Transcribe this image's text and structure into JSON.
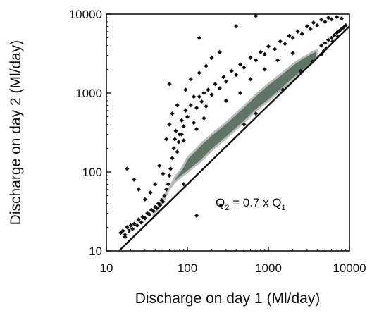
{
  "chart_data": {
    "type": "scatter",
    "title": "",
    "xlabel": "Discharge on day 1 (Ml/day)",
    "ylabel": "Discharge on day 2 (Ml/day)",
    "xscale": "log",
    "yscale": "log",
    "xlim": [
      10,
      10000
    ],
    "ylim": [
      10,
      10000
    ],
    "x_ticks": [
      10,
      100,
      1000,
      10000
    ],
    "y_ticks": [
      10,
      100,
      1000,
      10000
    ],
    "x_tick_labels": [
      "10",
      "100",
      "1000",
      "10000"
    ],
    "y_tick_labels": [
      "10",
      "100",
      "1000",
      "10000"
    ],
    "grid": false,
    "colors": {
      "points": "#111111",
      "dense_band": "#5f7565",
      "band_edge": "#b9bcb8",
      "line": "#111111",
      "axes": "#111111"
    },
    "reference_line": {
      "slope": 0.7,
      "x_range": [
        14.5,
        10000
      ]
    },
    "annotation": {
      "q2": "Q",
      "q2_sub": "2",
      "mid": " = 0.7 x Q",
      "q1_sub": "1"
    },
    "dense_band_upper": [
      [
        38,
        28
      ],
      [
        50,
        42
      ],
      [
        60,
        62
      ],
      [
        70,
        85
      ],
      [
        85,
        110
      ],
      [
        100,
        150
      ],
      [
        150,
        230
      ],
      [
        200,
        300
      ],
      [
        250,
        360
      ],
      [
        300,
        420
      ],
      [
        400,
        550
      ],
      [
        500,
        680
      ],
      [
        700,
        950
      ],
      [
        1000,
        1300
      ],
      [
        1500,
        1800
      ],
      [
        2000,
        2300
      ],
      [
        2500,
        2700
      ],
      [
        3000,
        3000
      ],
      [
        3500,
        3300
      ],
      [
        4000,
        3500
      ]
    ],
    "dense_band_lower": [
      [
        4000,
        2800
      ],
      [
        3000,
        2100
      ],
      [
        2000,
        1500
      ],
      [
        1500,
        1150
      ],
      [
        1000,
        800
      ],
      [
        700,
        600
      ],
      [
        500,
        430
      ],
      [
        300,
        270
      ],
      [
        200,
        190
      ],
      [
        150,
        140
      ],
      [
        100,
        100
      ],
      [
        70,
        75
      ],
      [
        55,
        55
      ],
      [
        45,
        38
      ],
      [
        38,
        28
      ]
    ],
    "points": [
      [
        15,
        17
      ],
      [
        16,
        18
      ],
      [
        17,
        16
      ],
      [
        18,
        20
      ],
      [
        19,
        18
      ],
      [
        20,
        21
      ],
      [
        21,
        19
      ],
      [
        22,
        22
      ],
      [
        24,
        21
      ],
      [
        25,
        25
      ],
      [
        27,
        23
      ],
      [
        28,
        27
      ],
      [
        30,
        26
      ],
      [
        32,
        30
      ],
      [
        34,
        29
      ],
      [
        36,
        33
      ],
      [
        38,
        32
      ],
      [
        40,
        36
      ],
      [
        42,
        35
      ],
      [
        44,
        40
      ],
      [
        46,
        38
      ],
      [
        48,
        44
      ],
      [
        50,
        42
      ],
      [
        52,
        50
      ],
      [
        55,
        60
      ],
      [
        58,
        70
      ],
      [
        60,
        90
      ],
      [
        62,
        110
      ],
      [
        65,
        150
      ],
      [
        68,
        200
      ],
      [
        70,
        260
      ],
      [
        72,
        330
      ],
      [
        75,
        180
      ],
      [
        78,
        240
      ],
      [
        80,
        300
      ],
      [
        85,
        450
      ],
      [
        90,
        380
      ],
      [
        95,
        600
      ],
      [
        100,
        500
      ],
      [
        110,
        700
      ],
      [
        120,
        420
      ],
      [
        130,
        650
      ],
      [
        140,
        900
      ],
      [
        150,
        780
      ],
      [
        160,
        1000
      ],
      [
        170,
        680
      ],
      [
        180,
        1100
      ],
      [
        200,
        950
      ],
      [
        220,
        1300
      ],
      [
        250,
        1150
      ],
      [
        280,
        1600
      ],
      [
        300,
        1400
      ],
      [
        350,
        1900
      ],
      [
        400,
        1700
      ],
      [
        450,
        2300
      ],
      [
        500,
        2100
      ],
      [
        600,
        2800
      ],
      [
        700,
        2600
      ],
      [
        800,
        3300
      ],
      [
        900,
        3100
      ],
      [
        1000,
        3900
      ],
      [
        1200,
        3600
      ],
      [
        1400,
        4500
      ],
      [
        1600,
        4200
      ],
      [
        1800,
        5300
      ],
      [
        2000,
        5000
      ],
      [
        2300,
        6000
      ],
      [
        2600,
        5600
      ],
      [
        3000,
        7000
      ],
      [
        3300,
        6500
      ],
      [
        3600,
        7800
      ],
      [
        4000,
        7200
      ],
      [
        4500,
        8500
      ],
      [
        5000,
        8000
      ],
      [
        5500,
        9000
      ],
      [
        6000,
        8600
      ],
      [
        7000,
        9200
      ],
      [
        8000,
        8800
      ],
      [
        4500,
        4000
      ],
      [
        5000,
        4300
      ],
      [
        5500,
        4700
      ],
      [
        6000,
        5000
      ],
      [
        6500,
        5400
      ],
      [
        7000,
        5800
      ],
      [
        7500,
        6100
      ],
      [
        8000,
        6500
      ],
      [
        8500,
        6800
      ],
      [
        9000,
        7200
      ],
      [
        5200,
        3700
      ],
      [
        6200,
        4500
      ],
      [
        7200,
        5200
      ],
      [
        4800,
        3400
      ],
      [
        35,
        55
      ],
      [
        45,
        120
      ],
      [
        55,
        260
      ],
      [
        60,
        400
      ],
      [
        65,
        550
      ],
      [
        75,
        700
      ],
      [
        85,
        300
      ],
      [
        95,
        1100
      ],
      [
        110,
        1500
      ],
      [
        120,
        900
      ],
      [
        140,
        1800
      ],
      [
        170,
        2200
      ],
      [
        200,
        2800
      ],
      [
        60,
        1300
      ],
      [
        250,
        3300
      ],
      [
        140,
        5000
      ],
      [
        400,
        7000
      ],
      [
        700,
        9500
      ],
      [
        30,
        45
      ],
      [
        40,
        70
      ],
      [
        50,
        95
      ],
      [
        18,
        110
      ],
      [
        22,
        80
      ],
      [
        25,
        60
      ],
      [
        90,
        250
      ],
      [
        130,
        350
      ],
      [
        160,
        480
      ],
      [
        300,
        800
      ],
      [
        450,
        1000
      ],
      [
        600,
        1500
      ],
      [
        900,
        2000
      ],
      [
        1300,
        2600
      ],
      [
        2000,
        3200
      ],
      [
        130,
        28
      ],
      [
        260,
        38
      ],
      [
        17,
        15
      ],
      [
        90,
        70
      ],
      [
        500,
        400
      ],
      [
        700,
        550
      ],
      [
        1500,
        1100
      ],
      [
        2500,
        1900
      ],
      [
        3500,
        2500
      ],
      [
        4500,
        3100
      ]
    ]
  }
}
